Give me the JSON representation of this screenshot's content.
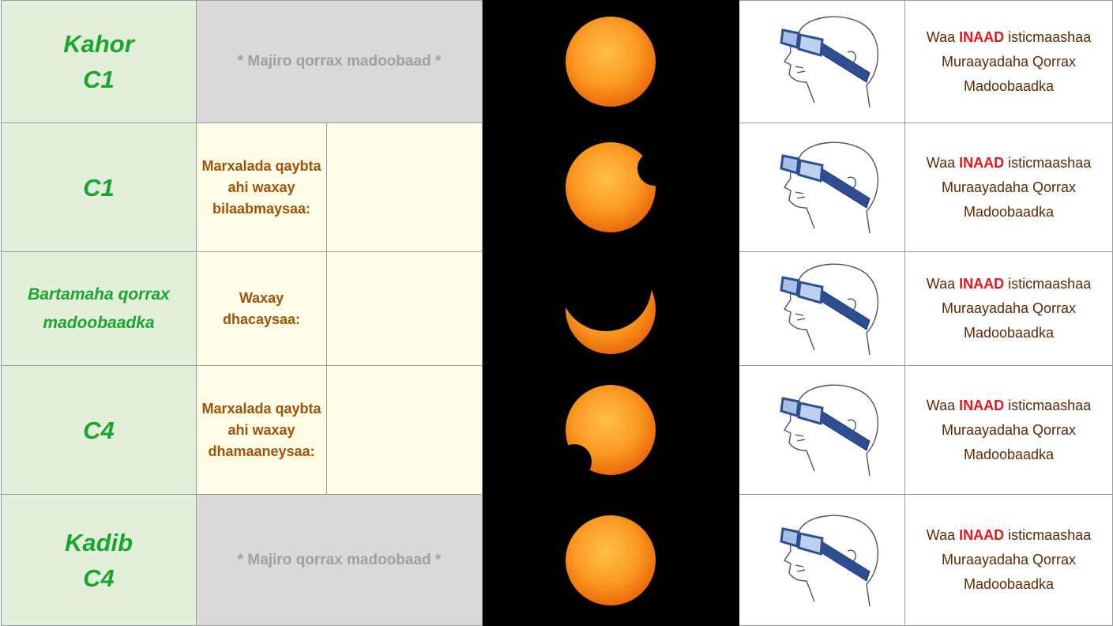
{
  "table": {
    "rows": [
      {
        "label": "Kahor C1",
        "note": "* Majiro qorrax madoobaad *",
        "instruction": {
          "lead": "Waa",
          "emphasis": "INAAD",
          "rest": "isticmaashaa Muraayadaha Qorrax Madoobaadka"
        }
      },
      {
        "label": "C1",
        "phase": "Marxalada qaybta ahi waxay bilaabmaysaa:",
        "instruction": {
          "lead": "Waa",
          "emphasis": "INAAD",
          "rest": "isticmaashaa Muraayadaha Qorrax Madoobaadka"
        }
      },
      {
        "label": "Bartamaha qorrax madoobaadka",
        "phase": "Waxay dhacaysaa:",
        "instruction": {
          "lead": "Waa",
          "emphasis": "INAAD",
          "rest": "isticmaashaa Muraayadaha Qorrax Madoobaadka"
        }
      },
      {
        "label": "C4",
        "phase": "Marxalada qaybta ahi waxay dhamaaneysaa:",
        "instruction": {
          "lead": "Waa",
          "emphasis": "INAAD",
          "rest": "isticmaashaa Muraayadaha Qorrax Madoobaadka"
        }
      },
      {
        "label": "Kadib C4",
        "note": "* Majiro qorrax madoobaad *",
        "instruction": {
          "lead": "Waa",
          "emphasis": "INAAD",
          "rest": "isticmaashaa Muraayadaha Qorrax Madoobaadka"
        }
      }
    ]
  }
}
